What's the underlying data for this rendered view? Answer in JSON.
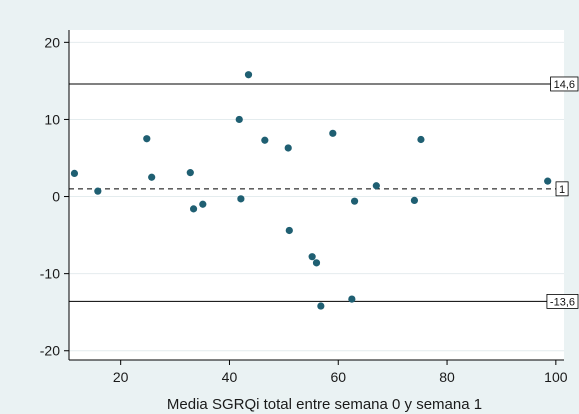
{
  "chart_data": {
    "type": "scatter",
    "title": "",
    "xlabel": "Media SGRQi total entre semana 0 y semana 1",
    "ylabel": "",
    "xlim": [
      10.5,
      101.5
    ],
    "ylim": [
      -21.2,
      21.6
    ],
    "xticks": [
      20,
      40,
      60,
      80,
      100
    ],
    "yticks": [
      -20,
      -10,
      0,
      10,
      20
    ],
    "grid": "horizontal",
    "point_color": "#1f5f72",
    "background_color": "#eaf2f3",
    "plot_background_color": "#ffffff",
    "reference_lines": [
      {
        "y": 14.6,
        "label": "14,6",
        "style": "solid"
      },
      {
        "y": 1,
        "label": "1",
        "style": "dashed"
      },
      {
        "y": -13.6,
        "label": "-13,6",
        "style": "solid"
      }
    ],
    "points": [
      {
        "x": 11.5,
        "y": 3.0
      },
      {
        "x": 15.8,
        "y": 0.7
      },
      {
        "x": 24.8,
        "y": 7.5
      },
      {
        "x": 25.7,
        "y": 2.5
      },
      {
        "x": 32.8,
        "y": 3.1
      },
      {
        "x": 33.4,
        "y": -1.6
      },
      {
        "x": 35.1,
        "y": -1.0
      },
      {
        "x": 41.8,
        "y": 10.0
      },
      {
        "x": 42.1,
        "y": -0.3
      },
      {
        "x": 43.5,
        "y": 15.8
      },
      {
        "x": 46.5,
        "y": 7.3
      },
      {
        "x": 50.8,
        "y": 6.3
      },
      {
        "x": 51.0,
        "y": -4.4
      },
      {
        "x": 55.2,
        "y": -7.8
      },
      {
        "x": 56.0,
        "y": -8.6
      },
      {
        "x": 56.8,
        "y": -14.2
      },
      {
        "x": 59.0,
        "y": 8.2
      },
      {
        "x": 62.5,
        "y": -13.3
      },
      {
        "x": 63.0,
        "y": -0.6
      },
      {
        "x": 67.0,
        "y": 1.4
      },
      {
        "x": 74.0,
        "y": -0.5
      },
      {
        "x": 75.2,
        "y": 7.4
      },
      {
        "x": 98.5,
        "y": 2.0
      }
    ]
  }
}
